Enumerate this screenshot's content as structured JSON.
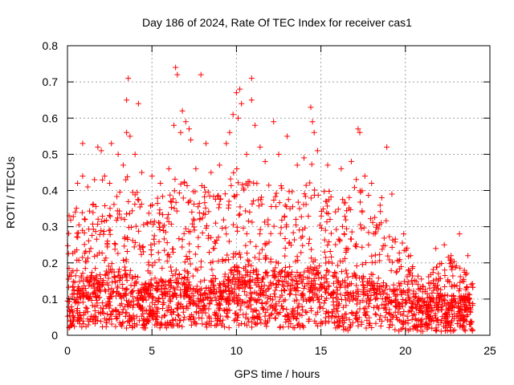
{
  "chart_data": {
    "type": "scatter",
    "title": "Day 186 of 2024, Rate Of TEC Index for receiver cas1",
    "xlabel": "GPS time / hours",
    "ylabel": "ROTI / TECUs",
    "xlim": [
      0,
      25
    ],
    "ylim": [
      0,
      0.8
    ],
    "xticks": [
      0,
      5,
      10,
      15,
      20,
      25
    ],
    "yticks": [
      0,
      0.1,
      0.2,
      0.3,
      0.4,
      0.5,
      0.6,
      0.7,
      0.8
    ],
    "xtick_labels": [
      "0",
      "5",
      "10",
      "15",
      "20",
      "25"
    ],
    "ytick_labels": [
      "0",
      "0.1",
      "0.2",
      "0.3",
      "0.4",
      "0.5",
      "0.6",
      "0.7",
      "0.8"
    ],
    "grid": true,
    "marker": "+",
    "color": "#ff0000",
    "envelope": {
      "x": [
        0,
        0.5,
        1,
        1.5,
        2,
        2.5,
        3,
        3.5,
        4,
        4.5,
        5,
        5.5,
        6,
        6.5,
        7,
        7.5,
        8,
        8.5,
        9,
        9.5,
        10,
        10.5,
        11,
        11.5,
        12,
        12.5,
        13,
        13.5,
        14,
        14.5,
        15,
        15.5,
        16,
        16.5,
        17,
        17.5,
        18,
        18.5,
        19,
        19.5,
        20,
        20.5,
        21,
        21.5,
        22,
        22.5,
        23,
        23.5,
        24
      ],
      "typical_max": [
        0.3,
        0.36,
        0.4,
        0.36,
        0.45,
        0.37,
        0.42,
        0.45,
        0.4,
        0.38,
        0.36,
        0.4,
        0.38,
        0.46,
        0.42,
        0.4,
        0.44,
        0.41,
        0.4,
        0.44,
        0.48,
        0.43,
        0.48,
        0.4,
        0.42,
        0.42,
        0.4,
        0.4,
        0.44,
        0.48,
        0.42,
        0.4,
        0.42,
        0.38,
        0.44,
        0.4,
        0.38,
        0.4,
        0.3,
        0.26,
        0.28,
        0.18,
        0.16,
        0.18,
        0.2,
        0.22,
        0.2,
        0.18,
        0.16
      ],
      "median": [
        0.08,
        0.1,
        0.11,
        0.1,
        0.11,
        0.1,
        0.11,
        0.11,
        0.1,
        0.09,
        0.09,
        0.1,
        0.1,
        0.11,
        0.1,
        0.08,
        0.08,
        0.1,
        0.1,
        0.11,
        0.12,
        0.12,
        0.12,
        0.11,
        0.11,
        0.11,
        0.11,
        0.11,
        0.11,
        0.12,
        0.12,
        0.11,
        0.1,
        0.1,
        0.11,
        0.1,
        0.1,
        0.1,
        0.08,
        0.08,
        0.08,
        0.07,
        0.06,
        0.07,
        0.07,
        0.07,
        0.07,
        0.07,
        0.06
      ],
      "min": [
        0.01,
        0.02,
        0.02,
        0.02,
        0.02,
        0.02,
        0.02,
        0.02,
        0.02,
        0.02,
        0.02,
        0.02,
        0.02,
        0.02,
        0.02,
        0.03,
        0.02,
        0.02,
        0.02,
        0.02,
        0.02,
        0.02,
        0.02,
        0.02,
        0.02,
        0.02,
        0.02,
        0.02,
        0.02,
        0.02,
        0.02,
        0.02,
        0.02,
        0.01,
        0.02,
        0.02,
        0.02,
        0.02,
        0.02,
        0.01,
        0.01,
        0.01,
        0.01,
        0.01,
        0.01,
        0.01,
        0.01,
        0.01,
        0.01
      ]
    },
    "outliers": [
      [
        0.1,
        0.33
      ],
      [
        0.6,
        0.42
      ],
      [
        0.9,
        0.44
      ],
      [
        0.9,
        0.53
      ],
      [
        1.2,
        0.41
      ],
      [
        1.6,
        0.43
      ],
      [
        1.8,
        0.52
      ],
      [
        2.0,
        0.51
      ],
      [
        2.2,
        0.44
      ],
      [
        2.5,
        0.42
      ],
      [
        2.6,
        0.53
      ],
      [
        3.0,
        0.5
      ],
      [
        3.3,
        0.47
      ],
      [
        3.5,
        0.56
      ],
      [
        3.5,
        0.65
      ],
      [
        3.6,
        0.71
      ],
      [
        3.7,
        0.55
      ],
      [
        4.0,
        0.5
      ],
      [
        4.2,
        0.64
      ],
      [
        4.4,
        0.45
      ],
      [
        5.0,
        0.44
      ],
      [
        5.5,
        0.42
      ],
      [
        6.0,
        0.46
      ],
      [
        6.3,
        0.58
      ],
      [
        6.4,
        0.74
      ],
      [
        6.5,
        0.72
      ],
      [
        6.7,
        0.56
      ],
      [
        6.8,
        0.62
      ],
      [
        7.0,
        0.59
      ],
      [
        7.2,
        0.57
      ],
      [
        7.3,
        0.54
      ],
      [
        7.6,
        0.46
      ],
      [
        7.9,
        0.72
      ],
      [
        8.2,
        0.53
      ],
      [
        8.5,
        0.45
      ],
      [
        9.0,
        0.47
      ],
      [
        9.4,
        0.53
      ],
      [
        9.6,
        0.56
      ],
      [
        9.8,
        0.61
      ],
      [
        10.0,
        0.67
      ],
      [
        10.1,
        0.6
      ],
      [
        10.2,
        0.68
      ],
      [
        10.3,
        0.64
      ],
      [
        10.6,
        0.5
      ],
      [
        10.9,
        0.71
      ],
      [
        10.9,
        0.65
      ],
      [
        11.1,
        0.58
      ],
      [
        11.4,
        0.52
      ],
      [
        11.7,
        0.48
      ],
      [
        12.2,
        0.59
      ],
      [
        12.5,
        0.5
      ],
      [
        13.0,
        0.55
      ],
      [
        13.6,
        0.47
      ],
      [
        14.0,
        0.49
      ],
      [
        14.4,
        0.63
      ],
      [
        14.5,
        0.59
      ],
      [
        14.6,
        0.56
      ],
      [
        14.8,
        0.51
      ],
      [
        15.4,
        0.47
      ],
      [
        16.2,
        0.46
      ],
      [
        16.8,
        0.48
      ],
      [
        17.2,
        0.57
      ],
      [
        17.3,
        0.56
      ],
      [
        17.6,
        0.44
      ],
      [
        18.0,
        0.42
      ],
      [
        18.6,
        0.38
      ],
      [
        18.9,
        0.52
      ],
      [
        19.2,
        0.39
      ],
      [
        19.9,
        0.28
      ],
      [
        20.3,
        0.22
      ],
      [
        21.8,
        0.24
      ],
      [
        22.3,
        0.25
      ],
      [
        22.7,
        0.22
      ],
      [
        23.2,
        0.28
      ],
      [
        23.7,
        0.22
      ],
      [
        23.9,
        0.14
      ]
    ]
  }
}
